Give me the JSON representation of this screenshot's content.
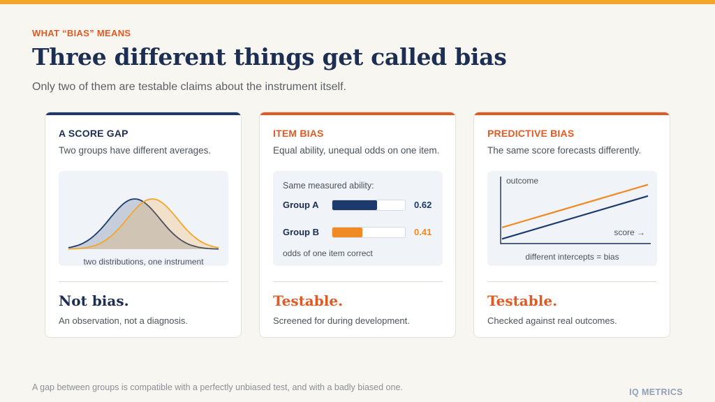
{
  "eyebrow": "WHAT “BIAS” MEANS",
  "title": "Three different things get called bias",
  "subtitle": "Only two of them are testable claims about the instrument itself.",
  "cards": [
    {
      "label": "A SCORE GAP",
      "description": "Two groups have different averages.",
      "panel": {
        "caption": "two distributions, one instrument"
      },
      "verdict": "Not bias.",
      "note": "An observation, not a diagnosis."
    },
    {
      "label": "ITEM BIAS",
      "description": "Equal ability, unequal odds on one item.",
      "panel": {
        "intro": "Same measured ability:",
        "footer": "odds of one item correct"
      },
      "verdict": "Testable.",
      "note": "Screened for during development."
    },
    {
      "label": "PREDICTIVE BIAS",
      "description": "The same score forecasts differently.",
      "panel": {
        "y_label": "outcome",
        "x_label": "score →",
        "caption": "different intercepts = bias"
      },
      "verdict": "Testable.",
      "note": "Checked against real outcomes."
    }
  ],
  "chart_data": [
    {
      "type": "area",
      "title": "",
      "series": [
        {
          "mean": -0.35,
          "sd": 1.0,
          "color": "#1c3a6b"
        },
        {
          "mean": 0.35,
          "sd": 1.0,
          "color": "#f4a62a"
        }
      ],
      "xlim": [
        -3,
        3
      ],
      "caption": "two distributions, one instrument"
    },
    {
      "type": "bar",
      "categories": [
        "Group A",
        "Group B"
      ],
      "values": [
        0.62,
        0.41
      ],
      "colors": [
        "#1c3a6b",
        "#f08a24"
      ],
      "ylim": [
        0,
        1
      ]
    },
    {
      "type": "line",
      "xlabel": "score →",
      "ylabel": "outcome",
      "xlim": [
        0,
        1
      ],
      "ylim": [
        0,
        1
      ],
      "series": [
        {
          "x": [
            0,
            1
          ],
          "y": [
            0.24,
            0.88
          ],
          "color": "#f08a24"
        },
        {
          "x": [
            0,
            1
          ],
          "y": [
            0.07,
            0.71
          ],
          "color": "#1c3a6b"
        }
      ]
    }
  ],
  "colors": {
    "navy": "#1c3a6b",
    "orange": "#e05a24",
    "gold": "#f4a62a",
    "background": "#f8f6f1"
  },
  "footnote": "A gap between groups is compatible with a perfectly unbiased test, and with a badly biased one.",
  "brand": "IQ METRICS"
}
